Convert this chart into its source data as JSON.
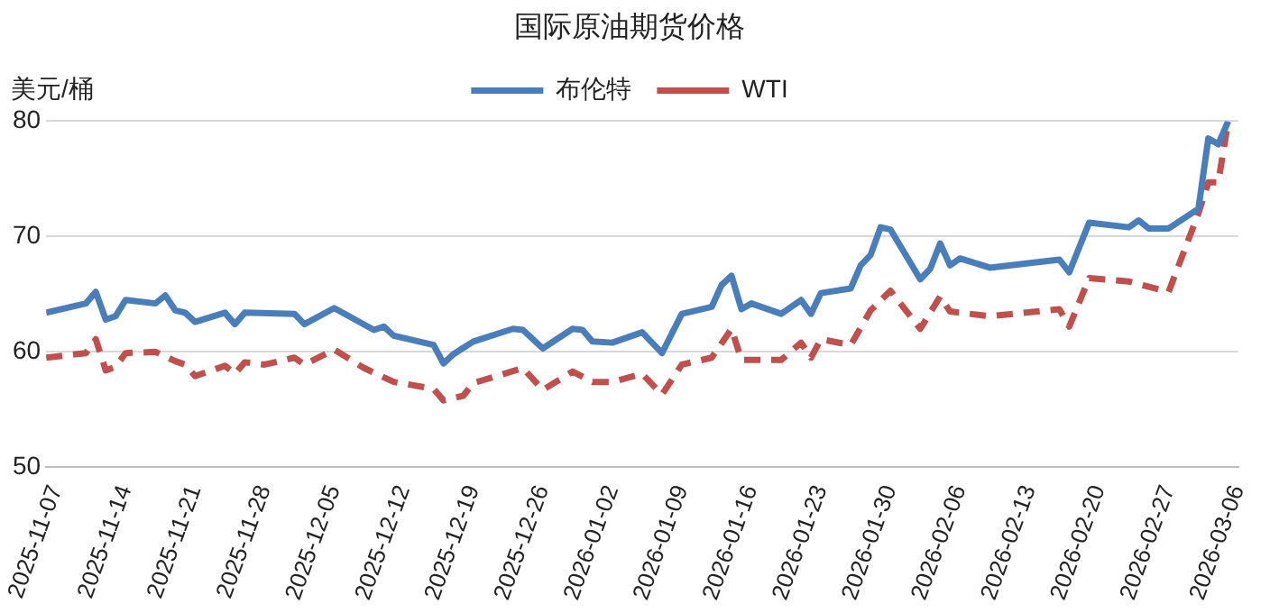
{
  "chart_data": {
    "type": "line",
    "title": "国际原油期货价格",
    "ylabel": "美元/桶",
    "xlim": [
      "2025-11-06",
      "2026-03-06"
    ],
    "xticks": [
      "2025-11-07",
      "2025-11-14",
      "2025-11-21",
      "2025-11-28",
      "2025-12-05",
      "2025-12-12",
      "2025-12-19",
      "2025-12-26",
      "2026-01-02",
      "2026-01-09",
      "2026-01-16",
      "2026-01-23",
      "2026-01-30",
      "2026-02-06",
      "2026-02-13",
      "2026-02-20",
      "2026-02-27",
      "2026-03-06"
    ],
    "ylim": [
      50,
      80
    ],
    "yticks": [
      50,
      60,
      70,
      80
    ],
    "grid": "y",
    "legend": "top",
    "marker": "none",
    "series": [
      {
        "name": "布伦特",
        "color": "#4a7ebb",
        "line_style": "solid",
        "x": [
          "2025-11-06",
          "2025-11-10",
          "2025-11-11",
          "2025-11-12",
          "2025-11-13",
          "2025-11-14",
          "2025-11-17",
          "2025-11-18",
          "2025-11-19",
          "2025-11-20",
          "2025-11-21",
          "2025-11-24",
          "2025-11-25",
          "2025-11-26",
          "2025-12-01",
          "2025-12-02",
          "2025-12-05",
          "2025-12-09",
          "2025-12-10",
          "2025-12-11",
          "2025-12-15",
          "2025-12-16",
          "2025-12-17",
          "2025-12-19",
          "2025-12-23",
          "2025-12-24",
          "2025-12-26",
          "2025-12-29",
          "2025-12-30",
          "2025-12-31",
          "2026-01-02",
          "2026-01-05",
          "2026-01-07",
          "2026-01-09",
          "2026-01-12",
          "2026-01-13",
          "2026-01-14",
          "2026-01-15",
          "2026-01-16",
          "2026-01-19",
          "2026-01-21",
          "2026-01-22",
          "2026-01-23",
          "2026-01-26",
          "2026-01-27",
          "2026-01-28",
          "2026-01-29",
          "2026-01-30",
          "2026-02-02",
          "2026-02-03",
          "2026-02-04",
          "2026-02-05",
          "2026-02-06",
          "2026-02-09",
          "2026-02-16",
          "2026-02-17",
          "2026-02-19",
          "2026-02-23",
          "2026-02-24",
          "2026-02-25",
          "2026-02-27",
          "2026-03-02",
          "2026-03-03",
          "2026-03-04",
          "2026-03-05"
        ],
        "values": [
          63.4,
          64.2,
          65.2,
          62.8,
          63.1,
          64.5,
          64.2,
          64.9,
          63.6,
          63.4,
          62.6,
          63.4,
          62.4,
          63.4,
          63.3,
          62.4,
          63.8,
          61.9,
          62.2,
          61.4,
          60.6,
          59.0,
          59.8,
          60.9,
          62.0,
          61.9,
          60.3,
          62.0,
          61.9,
          60.9,
          60.8,
          61.7,
          59.9,
          63.3,
          63.9,
          65.8,
          66.6,
          63.7,
          64.2,
          63.3,
          64.5,
          63.3,
          65.1,
          65.5,
          67.5,
          68.4,
          70.8,
          70.6,
          66.3,
          67.2,
          69.4,
          67.5,
          68.1,
          67.3,
          68.0,
          66.9,
          71.2,
          70.8,
          71.4,
          70.7,
          70.7,
          72.4,
          78.5,
          78.0,
          80.0
        ]
      },
      {
        "name": "WTI",
        "color": "#c0504d",
        "line_style": "dashed",
        "x": [
          "2025-11-06",
          "2025-11-10",
          "2025-11-11",
          "2025-11-12",
          "2025-11-13",
          "2025-11-14",
          "2025-11-17",
          "2025-11-19",
          "2025-11-20",
          "2025-11-21",
          "2025-11-24",
          "2025-11-25",
          "2025-11-26",
          "2025-11-28",
          "2025-12-01",
          "2025-12-02",
          "2025-12-05",
          "2025-12-08",
          "2025-12-11",
          "2025-12-15",
          "2025-12-16",
          "2025-12-18",
          "2025-12-19",
          "2025-12-24",
          "2025-12-26",
          "2025-12-29",
          "2025-12-31",
          "2026-01-02",
          "2026-01-05",
          "2026-01-07",
          "2026-01-09",
          "2026-01-12",
          "2026-01-14",
          "2026-01-15",
          "2026-01-19",
          "2026-01-21",
          "2026-01-22",
          "2026-01-23",
          "2026-01-26",
          "2026-01-28",
          "2026-01-30",
          "2026-02-02",
          "2026-02-04",
          "2026-02-05",
          "2026-02-09",
          "2026-02-16",
          "2026-02-17",
          "2026-02-19",
          "2026-02-23",
          "2026-02-27",
          "2026-03-02",
          "2026-03-03",
          "2026-03-04",
          "2026-03-05"
        ],
        "values": [
          59.5,
          59.9,
          61.1,
          58.4,
          58.7,
          59.9,
          60.0,
          59.2,
          58.9,
          57.9,
          58.8,
          58.1,
          59.1,
          58.9,
          59.5,
          58.9,
          60.2,
          58.6,
          57.4,
          56.8,
          55.8,
          56.2,
          57.3,
          58.6,
          56.7,
          58.3,
          57.4,
          57.4,
          58.1,
          56.3,
          58.9,
          59.5,
          62.0,
          59.3,
          59.3,
          60.8,
          59.5,
          61.1,
          60.6,
          63.6,
          65.3,
          62.0,
          64.8,
          63.5,
          63.1,
          63.7,
          62.2,
          66.4,
          66.1,
          65.2,
          72.0,
          74.7,
          74.7,
          80.0
        ]
      }
    ]
  }
}
